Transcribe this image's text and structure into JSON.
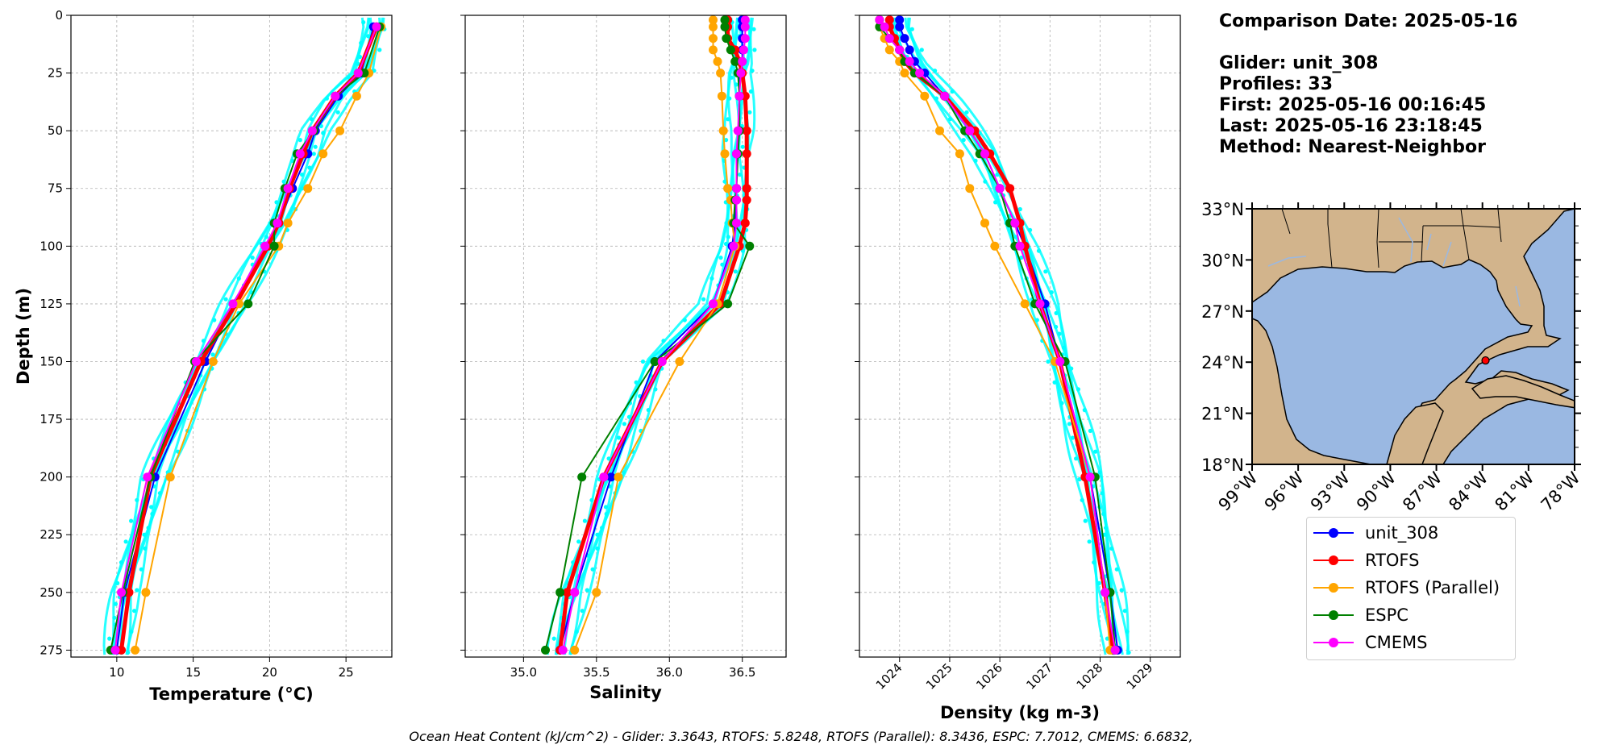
{
  "info": {
    "comparison_date": "Comparison Date: 2025-05-16",
    "glider": "Glider: unit_308",
    "profiles": "Profiles: 33",
    "first": "First: 2025-05-16 00:16:45",
    "last": "Last: 2025-05-16 23:18:45",
    "method": "Method: Nearest-Neighbor"
  },
  "footer": "Ocean Heat Content (kJ/cm^2) - Glider: 3.3643,  RTOFS: 5.8248,  RTOFS (Parallel): 8.3436,  ESPC: 7.7012,  CMEMS: 6.6832,",
  "colors": {
    "unit_308": "#0000ff",
    "RTOFS": "#ff0000",
    "RTOFS (Parallel)": "#ffa500",
    "ESPC": "#008000",
    "CMEMS": "#ff00ff",
    "glider_profiles": "#00ffff",
    "ocean": "#9ab8e2",
    "land": "#d2b48c"
  },
  "legend": [
    "unit_308",
    "RTOFS",
    "RTOFS (Parallel)",
    "ESPC",
    "CMEMS"
  ],
  "chart_data": [
    {
      "type": "line",
      "xlabel": "Temperature (°C)",
      "ylabel": "Depth (m)",
      "xlim": [
        7,
        28
      ],
      "ylim": [
        278,
        0
      ],
      "xticks": [
        10,
        15,
        20,
        25
      ],
      "yticks": [
        0,
        25,
        50,
        75,
        100,
        125,
        150,
        175,
        200,
        225,
        250,
        275
      ],
      "grid": true,
      "depths": [
        5,
        25,
        35,
        50,
        60,
        75,
        90,
        100,
        125,
        150,
        200,
        250,
        275
      ],
      "series": [
        {
          "name": "unit_308",
          "values": [
            26.8,
            26.0,
            24.5,
            23.0,
            22.5,
            21.5,
            20.6,
            19.8,
            17.7,
            15.8,
            12.5,
            10.5,
            10.0
          ]
        },
        {
          "name": "RTOFS",
          "values": [
            27.0,
            25.8,
            24.3,
            22.8,
            22.2,
            21.3,
            20.6,
            19.9,
            17.8,
            15.5,
            12.2,
            10.8,
            10.3
          ]
        },
        {
          "name": "RTOFS (Parallel)",
          "values": [
            27.3,
            26.5,
            25.7,
            24.6,
            23.5,
            22.5,
            21.2,
            20.6,
            18.0,
            16.3,
            13.5,
            11.9,
            11.2
          ]
        },
        {
          "name": "ESPC",
          "values": [
            27.2,
            26.2,
            24.3,
            22.9,
            21.8,
            21.0,
            20.3,
            20.3,
            18.6,
            15.1,
            12.2,
            10.4,
            9.6
          ]
        },
        {
          "name": "CMEMS",
          "values": [
            27.0,
            25.8,
            24.3,
            22.8,
            22.0,
            21.2,
            20.5,
            19.7,
            17.6,
            15.2,
            12.0,
            10.3,
            9.9
          ]
        }
      ]
    },
    {
      "type": "line",
      "xlabel": "Salinity",
      "xlim": [
        34.6,
        36.8
      ],
      "ylim": [
        278,
        0
      ],
      "xticks": [
        35.0,
        35.5,
        36.0,
        36.5
      ],
      "grid": true,
      "depths": [
        2,
        5,
        10,
        15,
        20,
        25,
        35,
        50,
        60,
        75,
        80,
        90,
        100,
        125,
        150,
        200,
        250,
        275
      ],
      "series": [
        {
          "name": "unit_308",
          "values": [
            36.5,
            36.5,
            36.5,
            36.5,
            36.5,
            36.48,
            36.48,
            36.48,
            36.46,
            36.46,
            36.46,
            36.45,
            36.43,
            36.3,
            35.9,
            35.6,
            35.35,
            35.25
          ]
        },
        {
          "name": "RTOFS",
          "values": [
            36.4,
            36.4,
            36.4,
            36.45,
            36.48,
            36.5,
            36.52,
            36.53,
            36.53,
            36.53,
            36.53,
            36.52,
            36.48,
            36.35,
            35.95,
            35.55,
            35.3,
            35.25
          ]
        },
        {
          "name": "RTOFS (Parallel)",
          "values": [
            36.3,
            36.3,
            36.3,
            36.3,
            36.33,
            36.35,
            36.36,
            36.37,
            36.38,
            36.4,
            36.42,
            36.43,
            36.45,
            36.33,
            36.07,
            35.65,
            35.5,
            35.35
          ]
        },
        {
          "name": "ESPC",
          "values": [
            36.38,
            36.38,
            36.39,
            36.42,
            36.45,
            36.47,
            36.48,
            36.48,
            36.47,
            36.46,
            36.45,
            36.44,
            36.55,
            36.4,
            35.9,
            35.4,
            35.25,
            35.15
          ]
        },
        {
          "name": "CMEMS",
          "values": [
            36.52,
            36.52,
            36.52,
            36.51,
            36.5,
            36.49,
            36.48,
            36.47,
            36.46,
            36.46,
            36.46,
            36.46,
            36.44,
            36.3,
            35.95,
            35.55,
            35.35,
            35.27
          ]
        }
      ]
    },
    {
      "type": "line",
      "xlabel": "Density (kg m-3)",
      "xlim": [
        1023.2,
        1029.6
      ],
      "ylim": [
        278,
        0
      ],
      "xticks": [
        1024,
        1025,
        1026,
        1027,
        1028,
        1029
      ],
      "grid": true,
      "depths": [
        2,
        5,
        10,
        15,
        20,
        25,
        35,
        50,
        60,
        75,
        90,
        100,
        125,
        150,
        200,
        250,
        275
      ],
      "series": [
        {
          "name": "unit_308",
          "values": [
            1024.0,
            1024.0,
            1024.1,
            1024.2,
            1024.3,
            1024.5,
            1024.9,
            1025.4,
            1025.7,
            1026.0,
            1026.3,
            1026.5,
            1026.9,
            1027.2,
            1027.8,
            1028.2,
            1028.35
          ]
        },
        {
          "name": "RTOFS",
          "values": [
            1023.8,
            1023.8,
            1023.9,
            1024.0,
            1024.1,
            1024.3,
            1024.9,
            1025.5,
            1025.8,
            1026.2,
            1026.4,
            1026.5,
            1026.8,
            1027.2,
            1027.7,
            1028.1,
            1028.25
          ]
        },
        {
          "name": "RTOFS (Parallel)",
          "values": [
            1023.6,
            1023.6,
            1023.7,
            1023.8,
            1024.0,
            1024.1,
            1024.5,
            1024.8,
            1025.2,
            1025.4,
            1025.7,
            1025.9,
            1026.5,
            1027.1,
            1027.8,
            1028.1,
            1028.2
          ]
        },
        {
          "name": "ESPC",
          "values": [
            1023.6,
            1023.6,
            1023.8,
            1024.0,
            1024.1,
            1024.3,
            1024.9,
            1025.3,
            1025.6,
            1026.0,
            1026.2,
            1026.3,
            1026.7,
            1027.3,
            1027.9,
            1028.2,
            1028.3
          ]
        },
        {
          "name": "CMEMS",
          "values": [
            1023.6,
            1023.7,
            1023.8,
            1024.0,
            1024.2,
            1024.4,
            1024.9,
            1025.4,
            1025.7,
            1026.0,
            1026.3,
            1026.4,
            1026.8,
            1027.2,
            1027.8,
            1028.1,
            1028.3
          ]
        }
      ]
    },
    {
      "type": "map",
      "lon_range": [
        -99,
        -78
      ],
      "lat_range": [
        18,
        33
      ],
      "xticks": [
        "99°W",
        "96°W",
        "93°W",
        "90°W",
        "87°W",
        "84°W",
        "81°W",
        "78°W"
      ],
      "yticks": [
        "33°N",
        "30°N",
        "27°N",
        "24°N",
        "21°N",
        "18°N"
      ],
      "yvals": [
        33,
        30,
        27,
        24,
        21,
        18
      ],
      "xvals": [
        -99,
        -96,
        -93,
        -90,
        -87,
        -84,
        -81,
        -78
      ],
      "marker": {
        "lon": -83.8,
        "lat": 24.1
      }
    }
  ]
}
